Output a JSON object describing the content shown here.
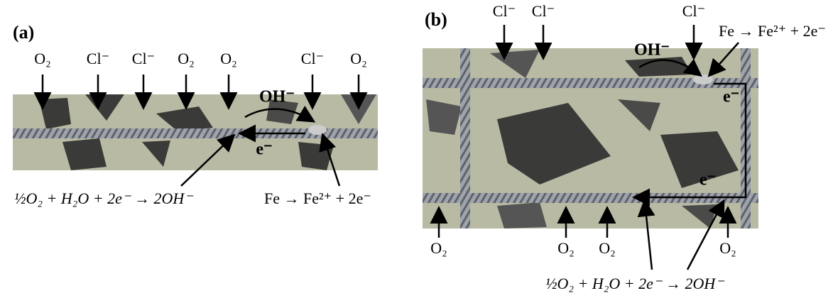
{
  "panels": [
    {
      "label": "(a)",
      "top_labels": [
        "O₂",
        "Cl⁻",
        "Cl⁻",
        "O₂",
        "O₂",
        "Cl⁻",
        "O₂"
      ],
      "hydroxide": "OH⁻",
      "electron": "e⁻",
      "cathodic_reaction": "½O₂ + H₂O + 2e⁻ → 2OH⁻",
      "anodic_reaction": "Fe → Fe²⁺ + 2e⁻"
    },
    {
      "label": "(b)",
      "top_labels": [
        "Cl⁻",
        "Cl⁻",
        "Cl⁻"
      ],
      "anodic_reaction": "Fe → Fe²⁺ + 2e⁻",
      "hydroxide": "OH⁻",
      "electrons": [
        "e⁻",
        "e⁻"
      ],
      "bottom_labels": [
        "O₂",
        "O₂",
        "O₂",
        "O₂"
      ],
      "cathodic_reaction": "½O₂ + H₂O + 2e⁻ → 2OH⁻"
    }
  ]
}
